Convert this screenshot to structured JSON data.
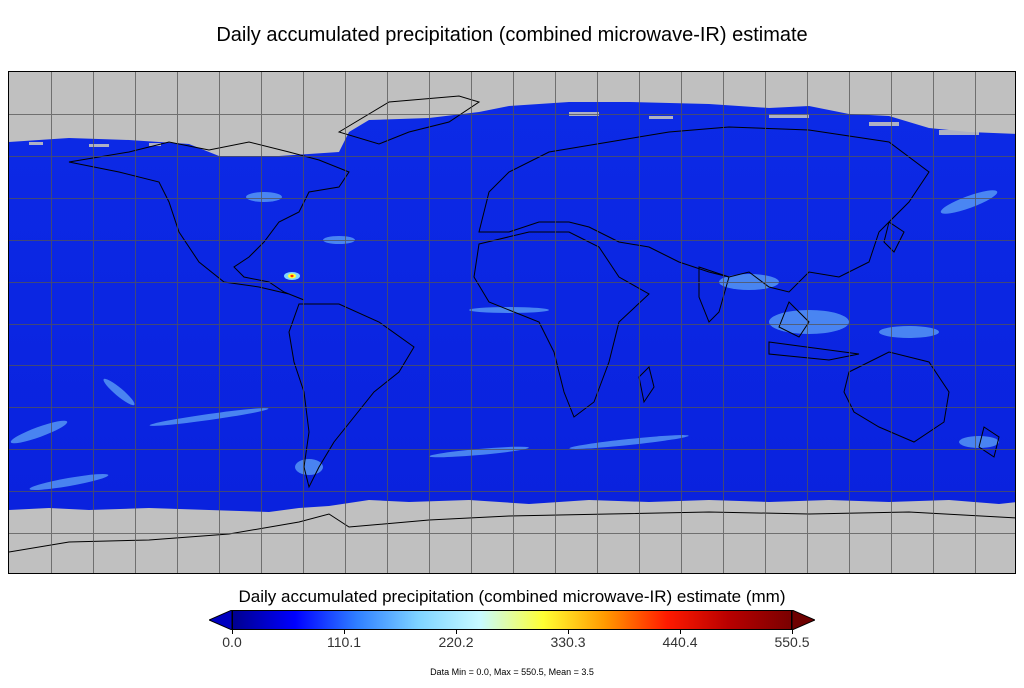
{
  "title": "Daily accumulated precipitation (combined microwave-IR) estimate",
  "map": {
    "projection": "equirectangular",
    "grid": true,
    "no_data_color": "#c0c0c0",
    "ocean_base_color": "#0a22e0",
    "coastline_color": "#000000"
  },
  "legend": {
    "title": "Daily accumulated precipitation (combined microwave-IR) estimate (mm)",
    "min": 0.0,
    "max": 550.5,
    "ticks": [
      "0.0",
      "110.1",
      "220.2",
      "330.3",
      "440.4",
      "550.5"
    ],
    "colors": [
      "#00008f",
      "#0000ff",
      "#2f7fff",
      "#7fd4ff",
      "#c8fbff",
      "#ffff33",
      "#ff9900",
      "#ff1a00",
      "#b80000",
      "#7a0000"
    ],
    "under_color": "#0000c0",
    "over_color": "#6e0000"
  },
  "stats_text": "Data Min = 0.0, Max = 550.5, Mean = 3.5"
}
